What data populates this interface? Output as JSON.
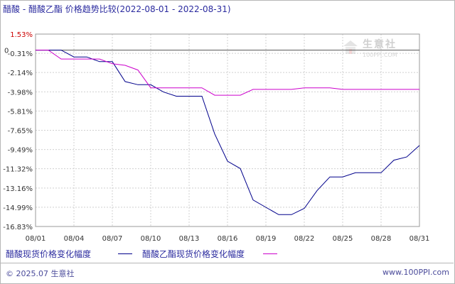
{
  "title": "醋酸 - 醋酸乙酯 价格趋势比较(2022-08-01 - 2022-08-31)",
  "watermark": {
    "text": "生意社",
    "url": "100PPI.COM"
  },
  "footer": {
    "left": "© 2025.07 生意社",
    "right": "www.100PPI.com"
  },
  "colors": {
    "series1": "#00008b",
    "series2": "#cc00cc",
    "grid": "#d0d0d0",
    "axis": "#555555",
    "zero": "#555555",
    "top_label": "#cc0000"
  },
  "chart_data": {
    "type": "line",
    "title": "醋酸 - 醋酸乙酯 价格趋势比较(2022-08-01 - 2022-08-31)",
    "xlabel": "",
    "ylabel": "",
    "x": [
      "08/01",
      "08/02",
      "08/03",
      "08/04",
      "08/05",
      "08/06",
      "08/07",
      "08/08",
      "08/09",
      "08/10",
      "08/11",
      "08/12",
      "08/13",
      "08/14",
      "08/15",
      "08/16",
      "08/17",
      "08/18",
      "08/19",
      "08/20",
      "08/21",
      "08/22",
      "08/23",
      "08/24",
      "08/25",
      "08/26",
      "08/27",
      "08/28",
      "08/29",
      "08/30",
      "08/31"
    ],
    "x_tick_labels": [
      "08/01",
      "08/04",
      "08/07",
      "08/10",
      "08/13",
      "08/16",
      "08/19",
      "08/22",
      "08/25",
      "08/28",
      "08/31"
    ],
    "y_tick_labels": [
      "1.53%",
      "-0.31%",
      "-2.14%",
      "-3.98%",
      "-5.81%",
      "-7.65%",
      "-9.49%",
      "-11.32%",
      "-13.16%",
      "-14.99%",
      "-16.83%"
    ],
    "y_ticks": [
      1.53,
      -0.31,
      -2.14,
      -3.98,
      -5.81,
      -7.65,
      -9.49,
      -11.32,
      -13.16,
      -14.99,
      -16.83
    ],
    "zero_label": "0",
    "ylim": [
      -16.83,
      1.53
    ],
    "grid": true,
    "legend_position": "bottom",
    "series": [
      {
        "name": "醋酸现货价格变化幅度",
        "color": "#00008b",
        "values": [
          0,
          0,
          0,
          -0.65,
          -0.65,
          -1.1,
          -1.1,
          -3.0,
          -3.3,
          -3.3,
          -4.0,
          -4.4,
          -4.4,
          -4.4,
          -8.0,
          -10.6,
          -11.3,
          -14.3,
          -15.0,
          -15.7,
          -15.7,
          -15.1,
          -13.4,
          -12.1,
          -12.1,
          -11.7,
          -11.7,
          -11.7,
          -10.5,
          -10.2,
          -9.1
        ]
      },
      {
        "name": "醋酸乙酯现货价格变化幅度",
        "color": "#cc00cc",
        "values": [
          0,
          0,
          -0.85,
          -0.85,
          -0.85,
          -0.85,
          -1.3,
          -1.45,
          -1.9,
          -3.6,
          -3.6,
          -3.6,
          -3.6,
          -3.6,
          -4.3,
          -4.3,
          -4.3,
          -3.75,
          -3.75,
          -3.75,
          -3.75,
          -3.6,
          -3.6,
          -3.6,
          -3.75,
          -3.75,
          -3.75,
          -3.75,
          -3.75,
          -3.75,
          -3.75
        ]
      }
    ]
  }
}
